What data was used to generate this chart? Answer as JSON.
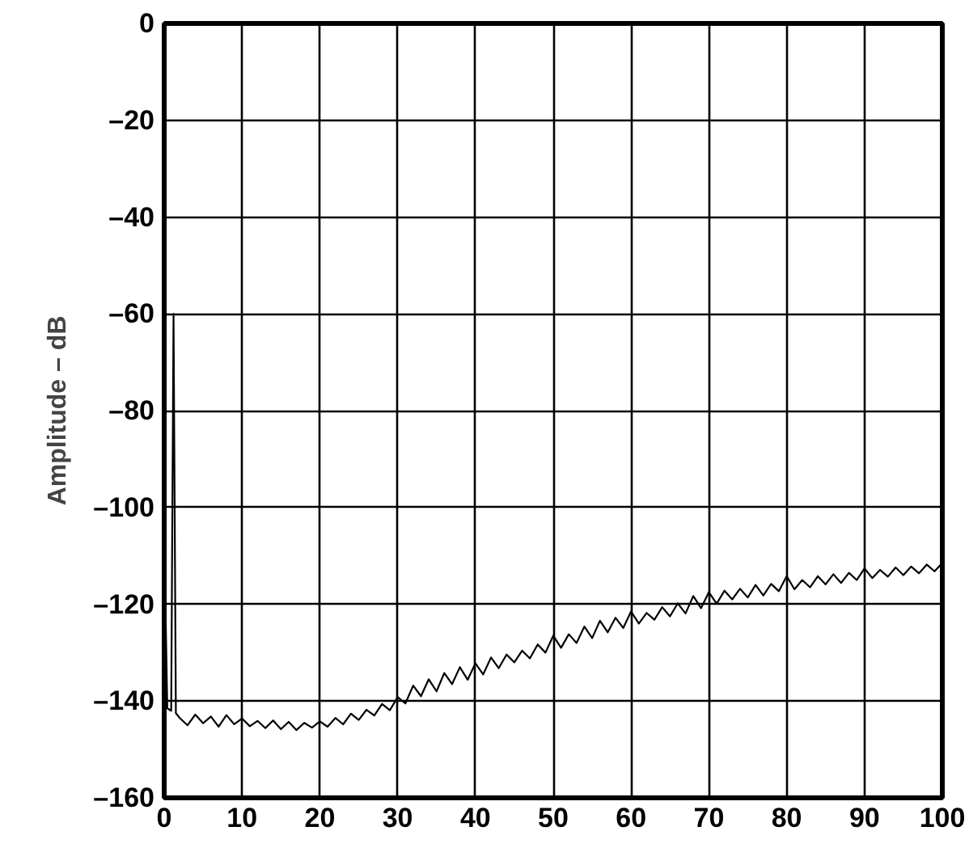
{
  "chart_data": {
    "type": "line",
    "ylabel": "Amplitude – dB",
    "x": [
      0,
      0.4,
      0.9,
      1.2,
      1.5,
      2,
      3,
      4,
      5,
      6,
      7,
      8,
      9,
      10,
      11,
      12,
      13,
      14,
      15,
      16,
      17,
      18,
      19,
      20,
      21,
      22,
      23,
      24,
      25,
      26,
      27,
      28,
      29,
      30,
      31,
      32,
      33,
      34,
      35,
      36,
      37,
      38,
      39,
      40,
      41,
      42,
      43,
      44,
      45,
      46,
      47,
      48,
      49,
      50,
      51,
      52,
      53,
      54,
      55,
      56,
      57,
      58,
      59,
      60,
      61,
      62,
      63,
      64,
      65,
      66,
      67,
      68,
      69,
      70,
      71,
      72,
      73,
      74,
      75,
      76,
      77,
      78,
      79,
      80,
      81,
      82,
      83,
      84,
      85,
      86,
      87,
      88,
      89,
      90,
      91,
      92,
      93,
      94,
      95,
      96,
      97,
      98,
      99,
      100
    ],
    "series": [
      {
        "color": "#000000",
        "values": [
          -106,
          -141.5,
          -142,
          -60,
          -142.5,
          -143.5,
          -145,
          -142.8,
          -144.6,
          -143.2,
          -145.3,
          -142.9,
          -144.8,
          -143.6,
          -145.2,
          -144.1,
          -145.6,
          -144.0,
          -145.8,
          -144.3,
          -146.0,
          -144.5,
          -145.5,
          -144.2,
          -145.3,
          -143.5,
          -144.8,
          -142.6,
          -143.9,
          -141.8,
          -143.0,
          -140.6,
          -141.9,
          -139.2,
          -140.5,
          -136.8,
          -139.0,
          -135.5,
          -138.0,
          -134.2,
          -136.5,
          -133.0,
          -135.6,
          -132.2,
          -134.5,
          -131.0,
          -133.2,
          -130.4,
          -132.0,
          -129.6,
          -131.2,
          -128.3,
          -130.0,
          -126.5,
          -129.0,
          -126.2,
          -128.0,
          -124.6,
          -127.0,
          -123.4,
          -125.8,
          -122.8,
          -124.9,
          -121.5,
          -124.0,
          -121.8,
          -123.2,
          -120.6,
          -122.5,
          -119.8,
          -121.9,
          -118.3,
          -120.8,
          -117.5,
          -119.9,
          -117.2,
          -119.0,
          -116.8,
          -118.6,
          -116.0,
          -118.2,
          -115.8,
          -117.3,
          -114.2,
          -116.9,
          -115.0,
          -116.5,
          -114.2,
          -115.9,
          -113.8,
          -115.6,
          -113.5,
          -115.0,
          -112.6,
          -114.6,
          -112.9,
          -114.3,
          -112.4,
          -114.0,
          -112.2,
          -113.6,
          -111.8,
          -113.2,
          -111.5
        ]
      }
    ],
    "xlim": [
      0,
      100
    ],
    "ylim": [
      -160,
      0
    ],
    "xticks": [
      0,
      10,
      20,
      30,
      40,
      50,
      60,
      70,
      80,
      90,
      100
    ],
    "yticks": [
      0,
      {
        "value": -20,
        "label": "–20"
      },
      {
        "value": -40,
        "label": "–40"
      },
      {
        "value": -60,
        "label": "–60"
      },
      {
        "value": -80,
        "label": "–80"
      },
      {
        "value": -100,
        "label": "–100"
      },
      {
        "value": -120,
        "label": "–120"
      },
      {
        "value": -140,
        "label": "–140"
      },
      {
        "value": -160,
        "label": "–160"
      }
    ],
    "grid": true
  }
}
